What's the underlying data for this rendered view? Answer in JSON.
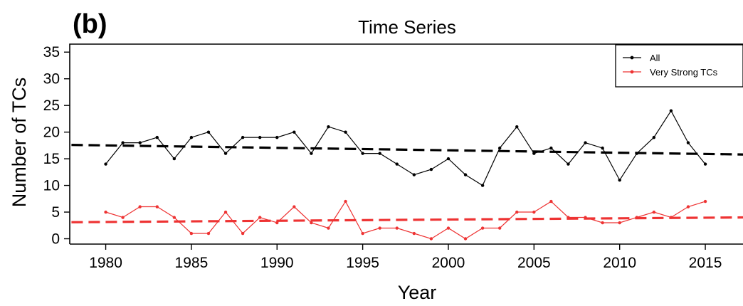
{
  "panel_label": "(b)",
  "chart_data": {
    "type": "line",
    "title": "Time Series",
    "xlabel": "Year",
    "ylabel": "Number of TCs",
    "xlim": [
      1977.9,
      2017.2
    ],
    "ylim": [
      -1,
      36.5
    ],
    "xticks": [
      1980,
      1985,
      1990,
      1995,
      2000,
      2005,
      2010,
      2015
    ],
    "yticks": [
      0,
      5,
      10,
      15,
      20,
      25,
      30,
      35
    ],
    "x": [
      1980,
      1981,
      1982,
      1983,
      1984,
      1985,
      1986,
      1987,
      1988,
      1989,
      1990,
      1991,
      1992,
      1993,
      1994,
      1995,
      1996,
      1997,
      1998,
      1999,
      2000,
      2001,
      2002,
      2003,
      2004,
      2005,
      2006,
      2007,
      2008,
      2009,
      2010,
      2011,
      2012,
      2013,
      2014,
      2015
    ],
    "series": [
      {
        "name": "All",
        "color": "#000000",
        "values": [
          14,
          18,
          18,
          19,
          15,
          19,
          20,
          16,
          19,
          19,
          19,
          20,
          16,
          21,
          20,
          16,
          16,
          14,
          12,
          13,
          15,
          12,
          10,
          17,
          21,
          16,
          17,
          14,
          18,
          17,
          11,
          16,
          19,
          24,
          18,
          14
        ]
      },
      {
        "name": "Very Strong TCs",
        "color": "#ee3333",
        "values": [
          5,
          4,
          6,
          6,
          4,
          1,
          1,
          5,
          1,
          4,
          3,
          6,
          3,
          2,
          7,
          1,
          2,
          2,
          1,
          0,
          2,
          0,
          2,
          2,
          5,
          5,
          7,
          4,
          4,
          3,
          3,
          4,
          5,
          4,
          6,
          7
        ]
      }
    ],
    "trend_lines": [
      {
        "series": "All",
        "start": [
          1978,
          17.6
        ],
        "end": [
          2017.2,
          15.8
        ]
      },
      {
        "series": "Very Strong TCs",
        "start": [
          1978,
          3.1
        ],
        "end": [
          2017.2,
          4.0
        ]
      }
    ],
    "legend": {
      "position": "top-right"
    },
    "grid": false
  }
}
